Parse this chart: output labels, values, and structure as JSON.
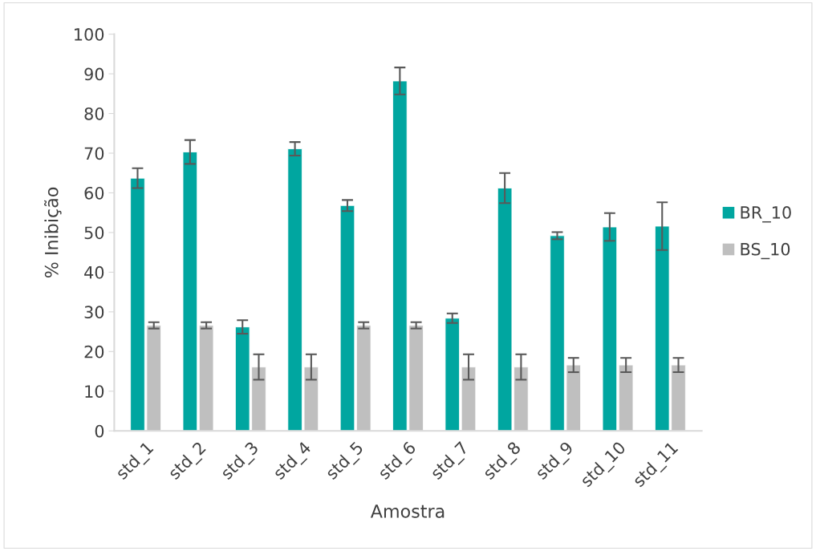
{
  "chart_data": {
    "type": "bar",
    "xlabel": "Amostra",
    "ylabel": "% Inibição",
    "categories": [
      "std_1",
      "std_2",
      "std_3",
      "std_4",
      "std_5",
      "std_6",
      "std_7",
      "std_8",
      "std_9",
      "std_10",
      "std_11"
    ],
    "series": [
      {
        "name": "BR_10",
        "color": "#00a6a0",
        "values": [
          63.7,
          70.3,
          26.2,
          71.1,
          56.8,
          88.2,
          28.4,
          61.2,
          49.2,
          51.4,
          51.6
        ],
        "errors": [
          2.5,
          3.0,
          1.7,
          1.7,
          1.4,
          3.4,
          1.2,
          3.8,
          0.9,
          3.5,
          6.0
        ]
      },
      {
        "name": "BS_10",
        "color": "#bfbfbf",
        "values": [
          26.6,
          26.6,
          16.1,
          16.1,
          26.6,
          26.6,
          16.1,
          16.1,
          16.6,
          16.6,
          16.6
        ],
        "errors": [
          0.8,
          0.8,
          3.2,
          3.2,
          0.8,
          0.8,
          3.2,
          3.2,
          1.8,
          1.8,
          1.8
        ]
      }
    ],
    "ylim": [
      0,
      100
    ],
    "yticks": [
      0,
      10,
      20,
      30,
      40,
      50,
      60,
      70,
      80,
      90,
      100
    ],
    "grid": false,
    "legend": "right"
  }
}
